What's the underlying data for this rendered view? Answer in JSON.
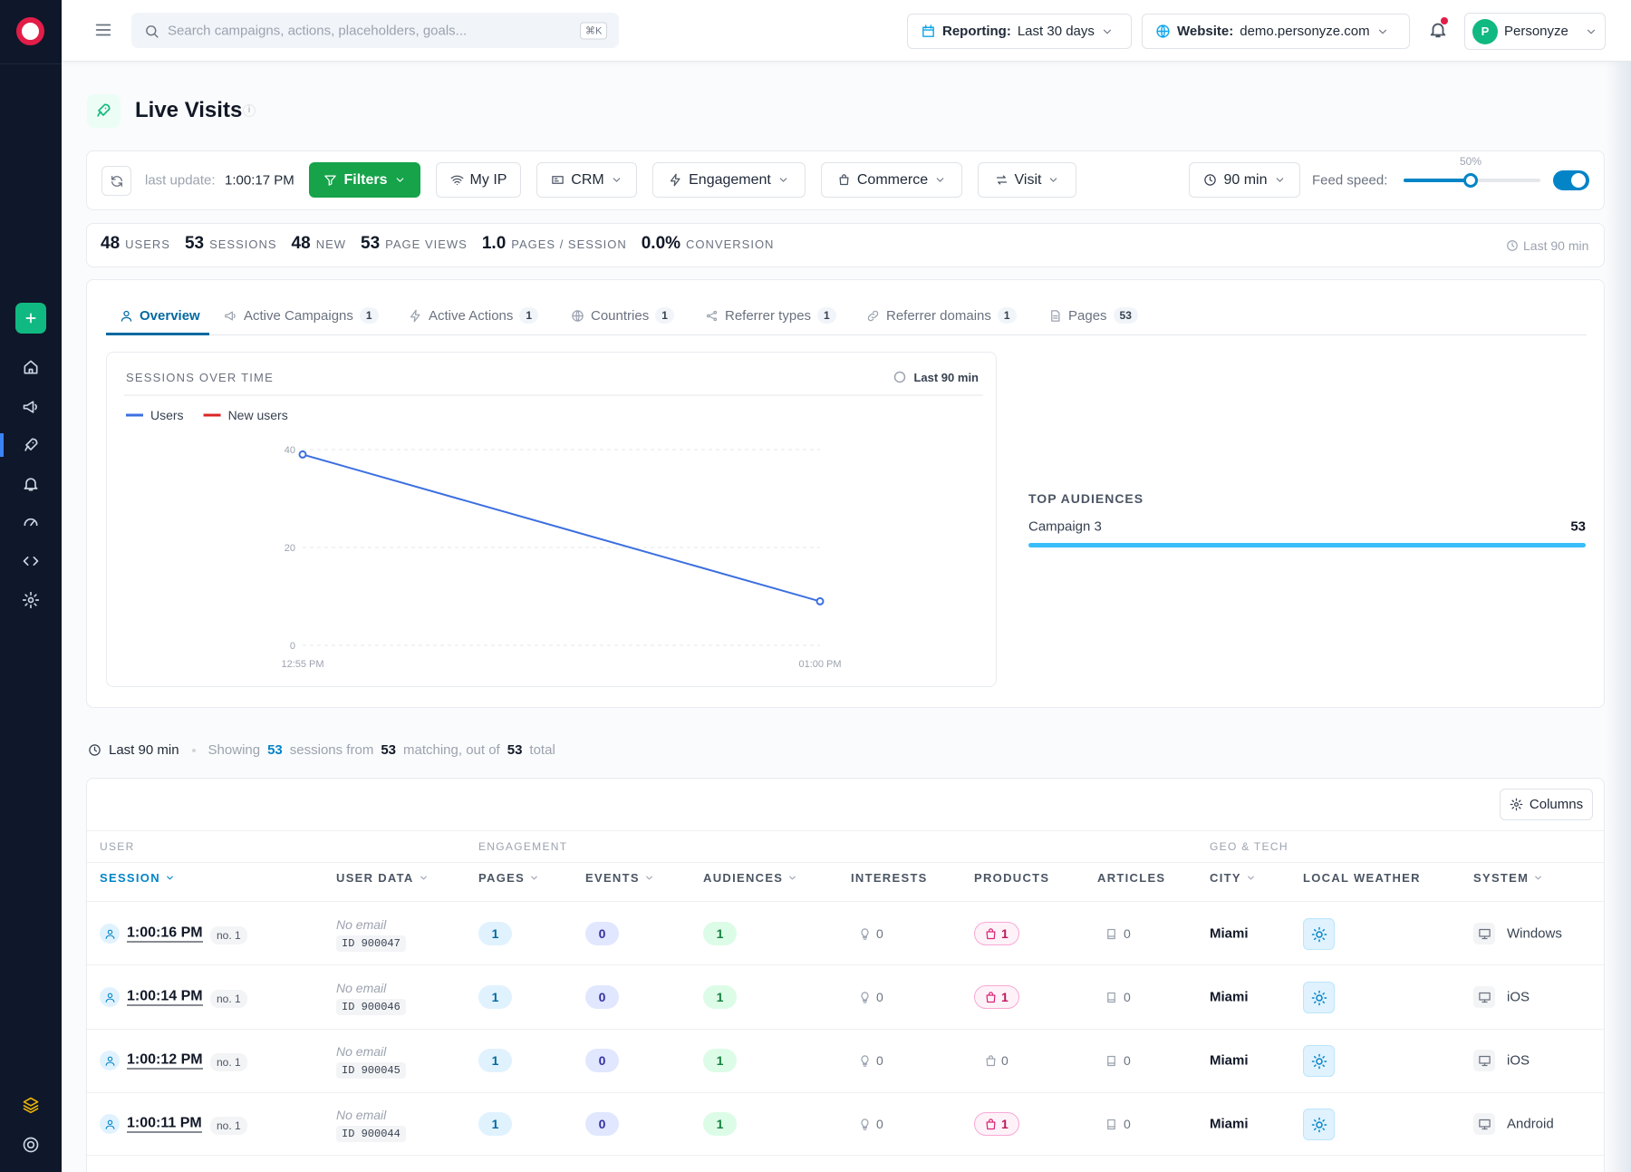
{
  "topbar": {
    "search_placeholder": "Search campaigns, actions, placeholders, goals...",
    "shortcut": "⌘K",
    "reporting_label": "Reporting:",
    "reporting_value": "Last 30 days",
    "website_label": "Website:",
    "website_value": "demo.personyze.com",
    "user_initial": "P",
    "user_name": "Personyze"
  },
  "page_title": "Live Visits",
  "info": "i",
  "toolbar": {
    "last_update_label": "last update:",
    "last_update": "1:00:17 PM",
    "buttons": [
      "Filters",
      "My IP",
      "CRM",
      "Engagement",
      "Commerce",
      "Visit"
    ],
    "window": "90 min",
    "feed_speed_label": "Feed speed:",
    "feed_speed": "50%"
  },
  "stats": [
    {
      "value": "48",
      "label": "USERS"
    },
    {
      "value": "53",
      "label": "SESSIONS"
    },
    {
      "value": "48",
      "label": "NEW"
    },
    {
      "value": "53",
      "label": "PAGE VIEWS"
    },
    {
      "value": "1.0",
      "label": "PAGES / SESSION"
    },
    {
      "value": "0.0%",
      "label": "CONVERSION"
    }
  ],
  "stats_window": "Last 90 min",
  "tabs": [
    {
      "label": "Overview"
    },
    {
      "label": "Active Campaigns",
      "count": "1"
    },
    {
      "label": "Active Actions",
      "count": "1"
    },
    {
      "label": "Countries",
      "count": "1"
    },
    {
      "label": "Referrer types",
      "count": "1"
    },
    {
      "label": "Referrer domains",
      "count": "1"
    },
    {
      "label": "Pages",
      "count": "53"
    }
  ],
  "chart_data": {
    "type": "line",
    "title": "SESSIONS OVER TIME",
    "window": "Last 90 min",
    "categories": [
      "12:55 PM",
      "01:00 PM"
    ],
    "series": [
      {
        "name": "Users",
        "color": "#3b6fe0",
        "values": [
          39,
          9
        ]
      },
      {
        "name": "New users",
        "color": "#dc2626",
        "values": [
          null,
          null
        ]
      }
    ],
    "ylim": [
      0,
      40
    ],
    "yticks": [
      0,
      20,
      40
    ],
    "grid": true
  },
  "top_audiences": {
    "title": "TOP AUDIENCES",
    "items": [
      {
        "name": "Campaign 3",
        "value": 53
      }
    ]
  },
  "summary": {
    "window": "Last 90 min",
    "showing": "Showing",
    "shown": "53",
    "from": "sessions from",
    "matching": "53",
    "matching_label": "matching, out of",
    "total": "53",
    "total_label": "total"
  },
  "table": {
    "columns_button": "Columns",
    "groups": [
      "USER",
      "ENGAGEMENT",
      "GEO & TECH"
    ],
    "headers": [
      "SESSION",
      "USER DATA",
      "PAGES",
      "EVENTS",
      "AUDIENCES",
      "INTERESTS",
      "PRODUCTS",
      "ARTICLES",
      "CITY",
      "LOCAL WEATHER",
      "SYSTEM"
    ],
    "rows": [
      {
        "time": "1:00:16 PM",
        "visit": "no. 1",
        "email": "No email",
        "id": "ID 900047",
        "pages": "1",
        "events": "0",
        "audiences": "1",
        "interests": "0",
        "products": "1",
        "articles": "0",
        "city": "Miami",
        "system": "Windows"
      },
      {
        "time": "1:00:14 PM",
        "visit": "no. 1",
        "email": "No email",
        "id": "ID 900046",
        "pages": "1",
        "events": "0",
        "audiences": "1",
        "interests": "0",
        "products": "1",
        "articles": "0",
        "city": "Miami",
        "system": "iOS"
      },
      {
        "time": "1:00:12 PM",
        "visit": "no. 1",
        "email": "No email",
        "id": "ID 900045",
        "pages": "1",
        "events": "0",
        "audiences": "1",
        "interests": "0",
        "products": "0",
        "articles": "0",
        "city": "Miami",
        "system": "iOS"
      },
      {
        "time": "1:00:11 PM",
        "visit": "no. 1",
        "email": "No email",
        "id": "ID 900044",
        "pages": "1",
        "events": "0",
        "audiences": "1",
        "interests": "0",
        "products": "1",
        "articles": "0",
        "city": "Miami",
        "system": "Android"
      }
    ]
  }
}
